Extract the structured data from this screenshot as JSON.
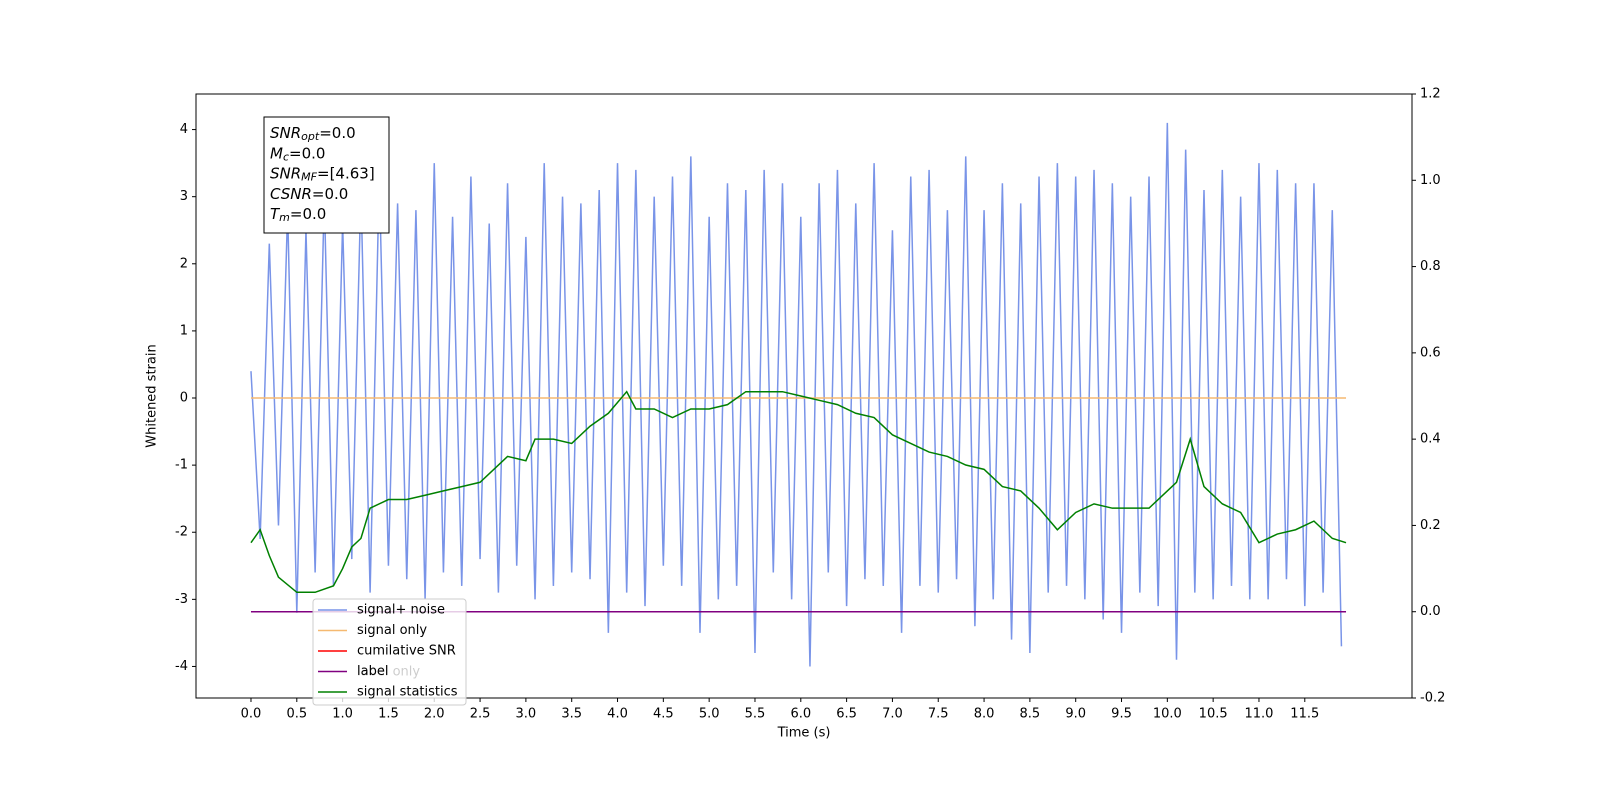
{
  "chart_data": {
    "type": "line",
    "xlabel": "Time (s)",
    "ylabel": "Whitened strain",
    "xlim": [
      -0.6,
      12.67
    ],
    "ylim": [
      -4.47,
      4.53
    ],
    "y2lim": [
      -0.2,
      1.2
    ],
    "xticks": [
      {
        "value": 0,
        "label": "0.0"
      },
      {
        "value": 0.5,
        "label": "0.5"
      },
      {
        "value": 1,
        "label": "1.0"
      },
      {
        "value": 1.5,
        "label": "1.5"
      },
      {
        "value": 2,
        "label": "2.0"
      },
      {
        "value": 2.5,
        "label": "2.5"
      },
      {
        "value": 3,
        "label": "3.0"
      },
      {
        "value": 3.5,
        "label": "3.5"
      },
      {
        "value": 4,
        "label": "4.0"
      },
      {
        "value": 4.5,
        "label": "4.5"
      },
      {
        "value": 5,
        "label": "5.0"
      },
      {
        "value": 5.5,
        "label": "5.5"
      },
      {
        "value": 6,
        "label": "6.0"
      },
      {
        "value": 6.5,
        "label": "6.5"
      },
      {
        "value": 7,
        "label": "7.0"
      },
      {
        "value": 7.5,
        "label": "7.5"
      },
      {
        "value": 8,
        "label": "8.0"
      },
      {
        "value": 8.5,
        "label": "8.5"
      },
      {
        "value": 9,
        "label": "9.0"
      },
      {
        "value": 9.5,
        "label": "9.5"
      },
      {
        "value": 10,
        "label": "10.0"
      },
      {
        "value": 10.5,
        "label": "10.5"
      },
      {
        "value": 11,
        "label": "11.0"
      },
      {
        "value": 11.5,
        "label": "11.5"
      }
    ],
    "yticks": [
      -4,
      -3,
      -2,
      -1,
      0,
      1,
      2,
      3,
      4
    ],
    "y2ticks": [
      -0.2,
      {
        "value": 0,
        "label": "0.0"
      },
      0.2,
      0.4,
      0.6,
      0.8,
      {
        "value": 1,
        "label": "1.0"
      },
      1.2
    ],
    "legend": "lower left",
    "textbox": [
      {
        "symbol": "SNR",
        "sub": "opt",
        "text": "=0.0"
      },
      {
        "symbol": "M",
        "sub": "c",
        "text": "=0.0"
      },
      {
        "symbol": "SNR",
        "sub": "MF",
        "text": "=[4.63]"
      },
      {
        "symbol": "CSNR",
        "sub": "",
        "text": "=0.0"
      },
      {
        "symbol": "T",
        "sub": "m",
        "text": "=0.0"
      }
    ],
    "annotations": [
      {
        "text": "label only"
      }
    ],
    "series": [
      {
        "name": "signal+ noise",
        "color": "#7994e8",
        "x": [
          0,
          0.1,
          0.2,
          0.3,
          0.4,
          0.5,
          0.6,
          0.7,
          0.8,
          0.9,
          1,
          1.1,
          1.2,
          1.3,
          1.4,
          1.5,
          1.6,
          1.7,
          1.8,
          1.9,
          2,
          2.1,
          2.2,
          2.3,
          2.4,
          2.5,
          2.6,
          2.7,
          2.8,
          2.9,
          3,
          3.1,
          3.2,
          3.3,
          3.4,
          3.5,
          3.6,
          3.7,
          3.8,
          3.9,
          4,
          4.1,
          4.2,
          4.3,
          4.4,
          4.5,
          4.6,
          4.7,
          4.8,
          4.9,
          5,
          5.1,
          5.2,
          5.3,
          5.4,
          5.5,
          5.6,
          5.7,
          5.8,
          5.9,
          6,
          6.1,
          6.2,
          6.3,
          6.4,
          6.5,
          6.6,
          6.7,
          6.8,
          6.9,
          7,
          7.1,
          7.2,
          7.3,
          7.4,
          7.5,
          7.6,
          7.7,
          7.8,
          7.9,
          8,
          8.1,
          8.2,
          8.3,
          8.4,
          8.5,
          8.6,
          8.7,
          8.8,
          8.9,
          9,
          9.1,
          9.2,
          9.3,
          9.4,
          9.5,
          9.6,
          9.7,
          9.8,
          9.9,
          10,
          10.1,
          10.2,
          10.3,
          10.4,
          10.5,
          10.6,
          10.7,
          10.8,
          10.9,
          11,
          11.1,
          11.2,
          11.3,
          11.4,
          11.5,
          11.6,
          11.7,
          11.8,
          11.9
        ],
        "values": [
          0.4,
          -2.1,
          2.3,
          -1.9,
          2.8,
          -3.2,
          2.5,
          -2.6,
          3.0,
          -2.8,
          2.6,
          -2.4,
          3.1,
          -2.9,
          3.3,
          -2.5,
          2.9,
          -2.7,
          2.8,
          -3.0,
          3.5,
          -2.6,
          2.7,
          -2.8,
          3.3,
          -2.4,
          2.6,
          -2.9,
          3.2,
          -2.5,
          2.4,
          -3.0,
          3.5,
          -2.8,
          3.0,
          -2.6,
          2.9,
          -2.7,
          3.1,
          -3.5,
          3.5,
          -2.9,
          3.4,
          -3.1,
          3.0,
          -2.5,
          3.3,
          -2.8,
          3.6,
          -3.5,
          2.7,
          -3.0,
          3.2,
          -2.8,
          3.1,
          -3.8,
          3.4,
          -2.6,
          3.2,
          -3.0,
          2.7,
          -4.0,
          3.2,
          -2.6,
          3.4,
          -3.1,
          2.9,
          -2.7,
          3.5,
          -2.8,
          2.5,
          -3.5,
          3.3,
          -2.8,
          3.4,
          -2.9,
          2.8,
          -2.7,
          3.6,
          -3.4,
          2.8,
          -3.0,
          3.2,
          -3.6,
          2.9,
          -3.8,
          3.3,
          -2.9,
          3.5,
          -2.8,
          3.3,
          -3.0,
          3.4,
          -3.3,
          3.2,
          -3.5,
          3.0,
          -2.9,
          3.3,
          -3.1,
          4.1,
          -3.9,
          3.7,
          -2.9,
          3.1,
          -3.0,
          3.4,
          -2.8,
          3.0,
          -3.0,
          3.5,
          -3.0,
          3.4,
          -2.7,
          3.2,
          -3.1,
          3.2,
          -2.9,
          2.8,
          -3.7
        ]
      },
      {
        "name": "signal only",
        "color": "#f5b971",
        "x": [
          0,
          11.95
        ],
        "values": [
          0,
          0
        ]
      },
      {
        "name": "cumilative SNR",
        "color": "#ff0000",
        "x": [],
        "values": []
      },
      {
        "name": "label",
        "color": "#800080",
        "axis": "y2",
        "x": [
          0,
          11.95
        ],
        "values": [
          0,
          0
        ]
      },
      {
        "name": "signal statistics",
        "color": "#008000",
        "axis": "y2",
        "x": [
          0,
          0.1,
          0.2,
          0.3,
          0.5,
          0.7,
          0.9,
          1,
          1.1,
          1.2,
          1.3,
          1.5,
          1.7,
          1.9,
          2.1,
          2.3,
          2.5,
          2.6,
          2.8,
          3,
          3.1,
          3.3,
          3.5,
          3.7,
          3.9,
          4.1,
          4.2,
          4.4,
          4.6,
          4.8,
          5,
          5.2,
          5.4,
          5.6,
          5.8,
          6,
          6.2,
          6.4,
          6.6,
          6.8,
          7,
          7.2,
          7.4,
          7.6,
          7.8,
          8,
          8.2,
          8.4,
          8.6,
          8.8,
          9,
          9.2,
          9.4,
          9.6,
          9.8,
          10,
          10.1,
          10.25,
          10.4,
          10.6,
          10.8,
          11,
          11.2,
          11.4,
          11.6,
          11.8,
          11.95
        ],
        "values": [
          0.16,
          0.19,
          0.13,
          0.08,
          0.045,
          0.045,
          0.06,
          0.1,
          0.15,
          0.17,
          0.24,
          0.26,
          0.26,
          0.27,
          0.28,
          0.29,
          0.3,
          0.32,
          0.36,
          0.35,
          0.4,
          0.4,
          0.39,
          0.43,
          0.46,
          0.51,
          0.47,
          0.47,
          0.45,
          0.47,
          0.47,
          0.48,
          0.51,
          0.51,
          0.51,
          0.5,
          0.49,
          0.48,
          0.46,
          0.45,
          0.41,
          0.39,
          0.37,
          0.36,
          0.34,
          0.33,
          0.29,
          0.28,
          0.24,
          0.19,
          0.23,
          0.25,
          0.24,
          0.24,
          0.24,
          0.28,
          0.3,
          0.4,
          0.29,
          0.25,
          0.23,
          0.16,
          0.18,
          0.19,
          0.21,
          0.17,
          0.16
        ]
      }
    ]
  }
}
